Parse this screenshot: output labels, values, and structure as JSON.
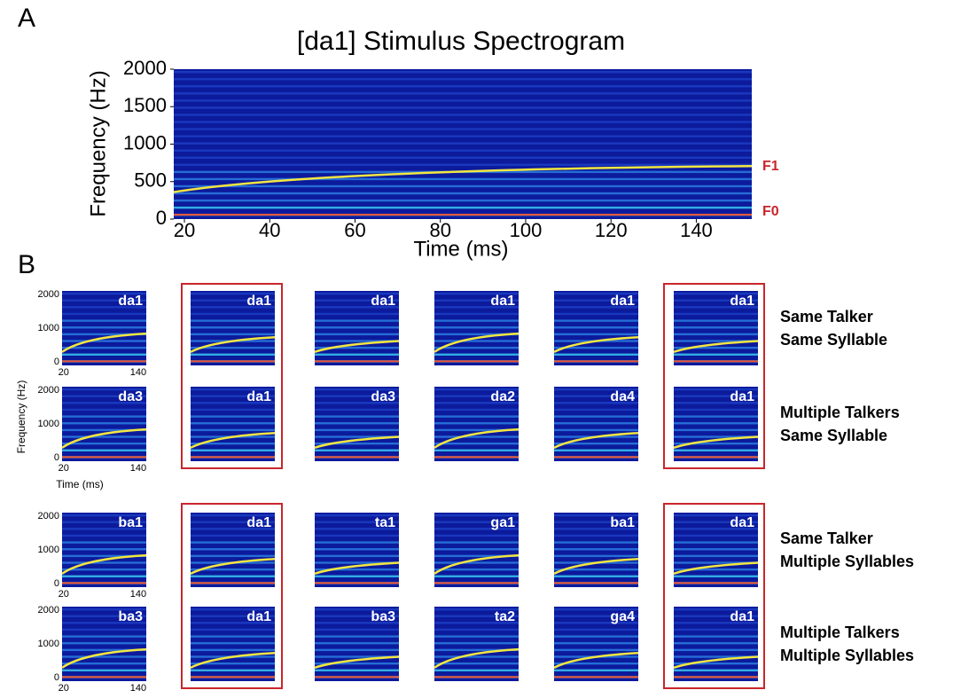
{
  "panel_a": {
    "label": "A",
    "title": "[da1] Stimulus Spectrogram",
    "x_label": "Time (ms)",
    "y_label": "Frequency (Hz)",
    "xlim": [
      17.5,
      153
    ],
    "ylim": [
      0,
      2000
    ],
    "xticks": [
      20,
      40,
      60,
      80,
      100,
      120,
      140
    ],
    "yticks": [
      0,
      500,
      1000,
      1500,
      2000
    ],
    "formant_labels": [
      {
        "text": "F1",
        "value": 700
      },
      {
        "text": "F0",
        "value": 100
      }
    ]
  },
  "panel_b": {
    "label": "B",
    "y_label": "Frequency (Hz)",
    "x_label": "Time (ms)",
    "yticks": [
      0,
      1000,
      2000
    ],
    "xticks": [
      20,
      140
    ],
    "rows": [
      {
        "label_lines": [
          "Same Talker",
          "Same Syllable"
        ],
        "tiles": [
          "da1",
          "da1",
          "da1",
          "da1",
          "da1",
          "da1"
        ]
      },
      {
        "label_lines": [
          "Multiple Talkers",
          "Same Syllable"
        ],
        "tiles": [
          "da3",
          "da1",
          "da3",
          "da2",
          "da4",
          "da1"
        ]
      },
      {
        "label_lines": [
          "Same Talker",
          "Multiple Syllables"
        ],
        "tiles": [
          "ba1",
          "da1",
          "ta1",
          "ga1",
          "ba1",
          "da1"
        ]
      },
      {
        "label_lines": [
          "Multiple Talkers",
          "Multiple Syllables"
        ],
        "tiles": [
          "ba3",
          "da1",
          "ba3",
          "ta2",
          "ga4",
          "da1"
        ]
      }
    ]
  }
}
